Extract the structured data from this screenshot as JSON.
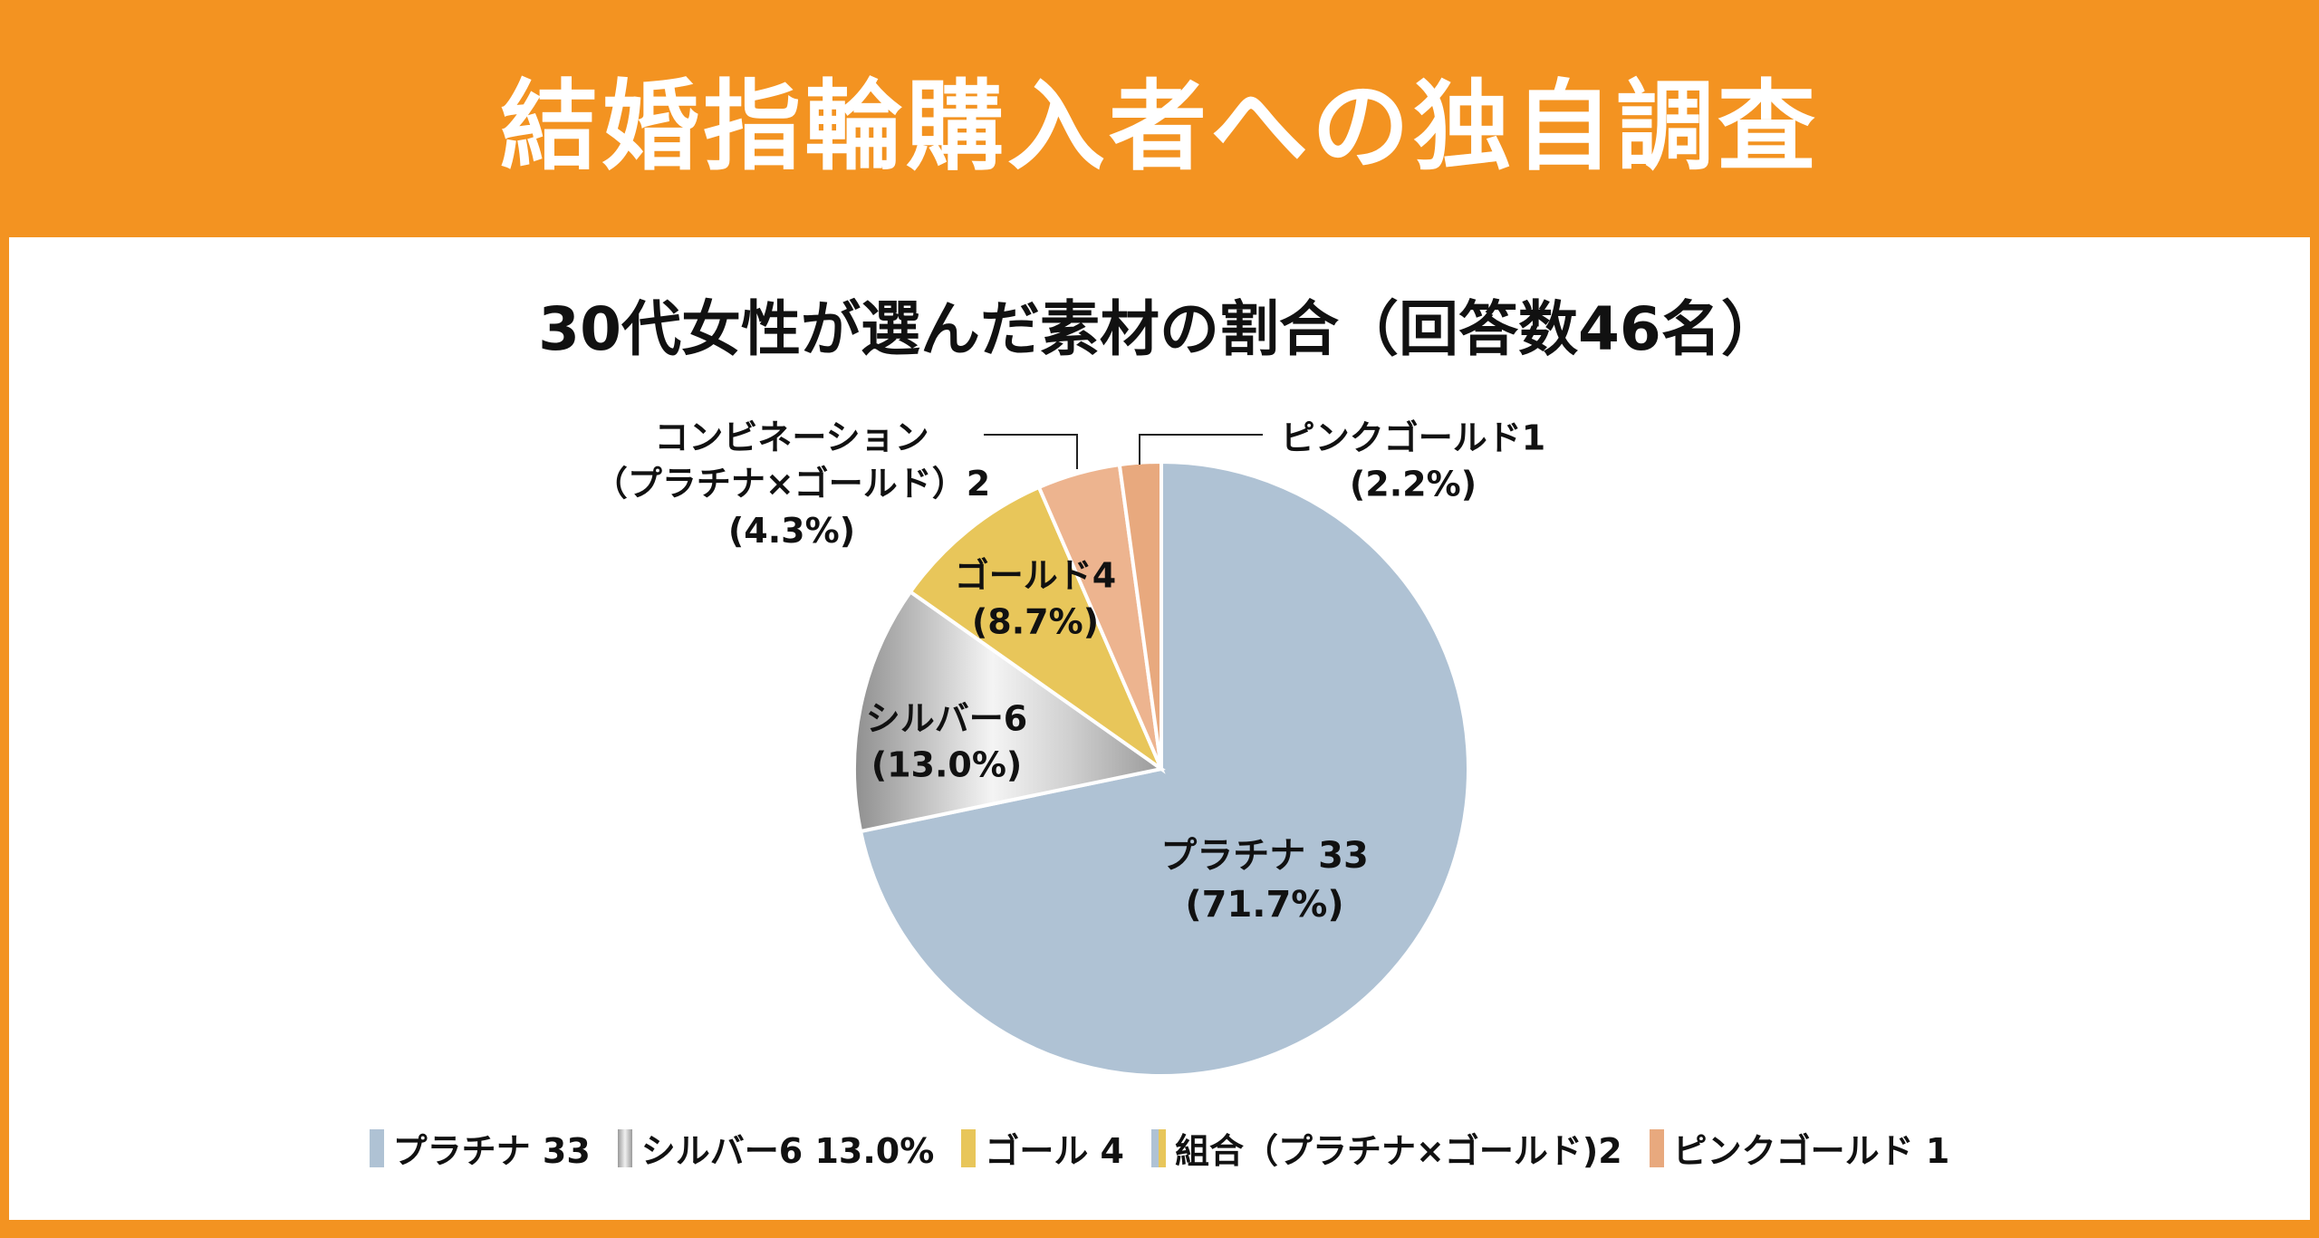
{
  "header": {
    "title": "結婚指輪購入者への独自調査"
  },
  "chart_data": {
    "type": "pie",
    "title": "30代女性が選んだ素材の割合（回答数46名）",
    "start": "12 o'clock, clockwise",
    "slices": [
      {
        "name": "プラチナ",
        "value": 33,
        "percent": 71.7,
        "color": "#AFC2D4",
        "label_name": "プラチナ 33",
        "label_pct": "(71.7%)"
      },
      {
        "name": "シルバー",
        "value": 6,
        "percent": 13.0,
        "color": "#BDBDBD",
        "label_name": "シルバー6",
        "label_pct": "(13.0%)"
      },
      {
        "name": "ゴールド",
        "value": 4,
        "percent": 8.7,
        "color": "#E8C65A",
        "label_name": "ゴールド4",
        "label_pct": "(8.7%)"
      },
      {
        "name": "コンビネーション",
        "value": 2,
        "percent": 4.3,
        "color": "#EDB48F",
        "label_name": "コンビネーション",
        "label_name2": "（プラチナ×ゴールド）2",
        "label_pct": "(4.3%)"
      },
      {
        "name": "ピンクゴールド",
        "value": 1,
        "percent": 2.2,
        "color": "#E8A97E",
        "label_name": "ピンクゴールド1",
        "label_pct": "(2.2%)"
      }
    ],
    "legend": [
      {
        "label": "プラチナ 33",
        "color": "#AFC2D4"
      },
      {
        "label": "シルバー6 13.0%",
        "color": "#C4C4C4"
      },
      {
        "label": "ゴール 4",
        "color": "#E8C65A"
      },
      {
        "label": "組合（プラチナ×ゴールド)2",
        "color": "#AFC2D4",
        "color2": "#E8C65A"
      },
      {
        "label": "ピンクゴールド 1",
        "color": "#E8A97E"
      }
    ],
    "legend_position": "bottom"
  }
}
